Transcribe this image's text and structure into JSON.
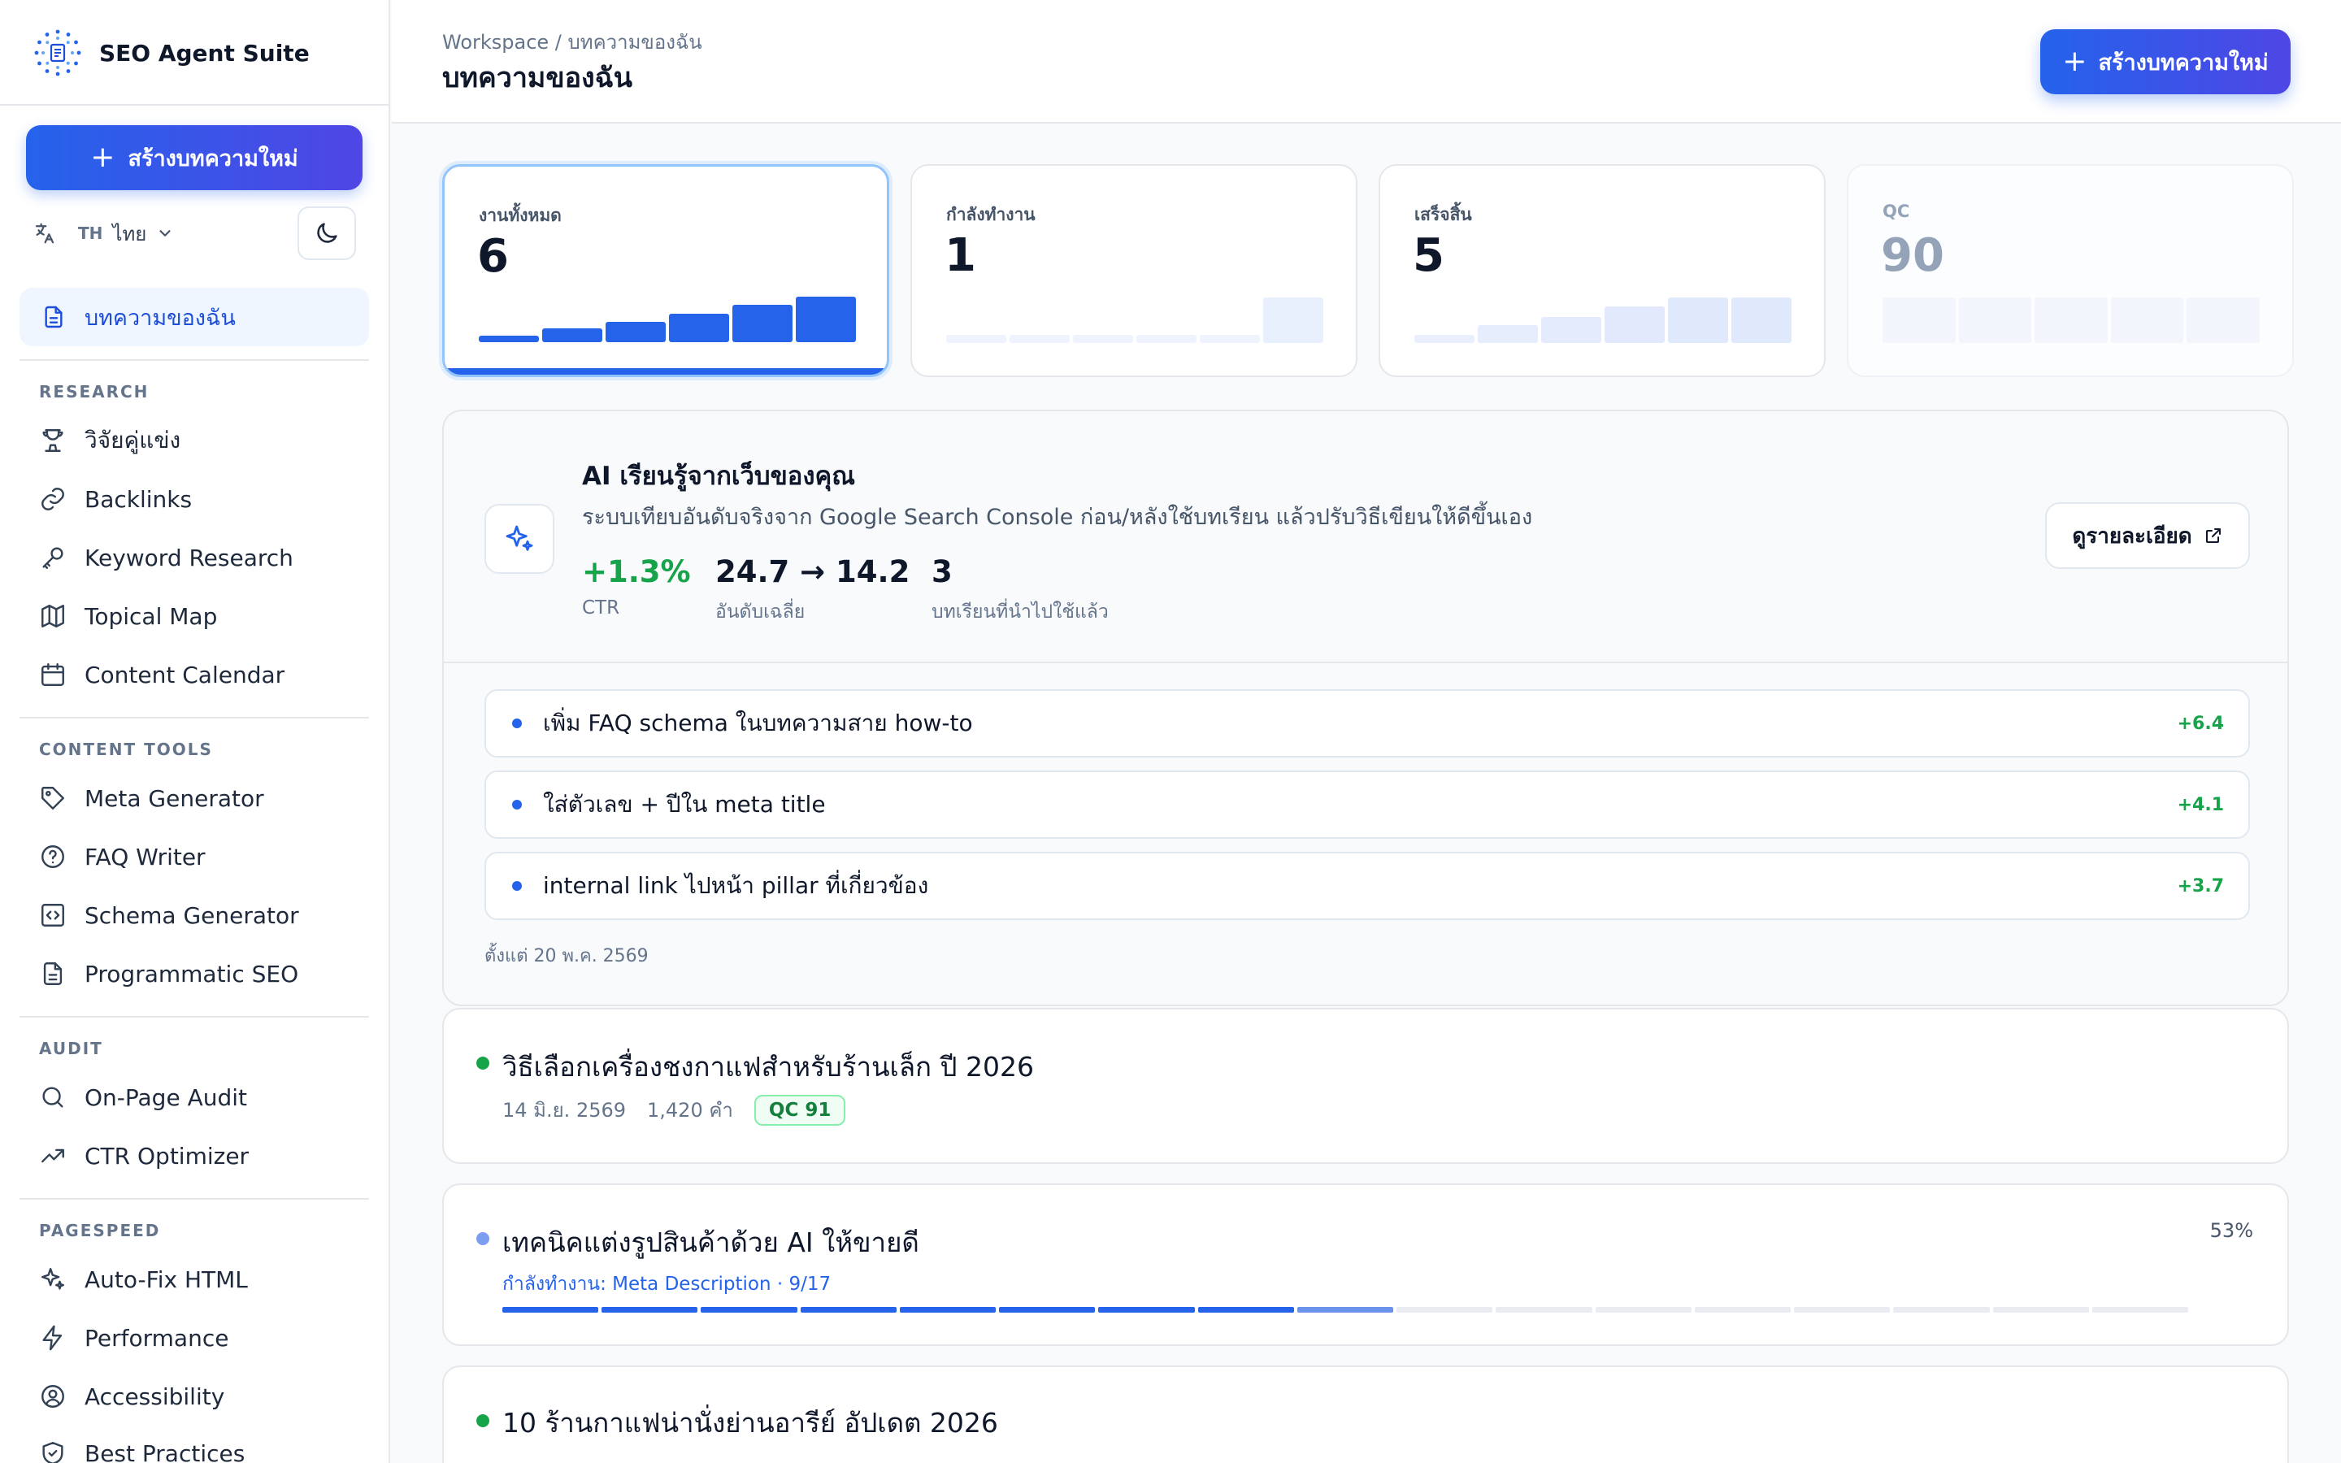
{
  "app": {
    "name": "SEO Agent Suite"
  },
  "sidebar": {
    "create_label": "สร้างบทความใหม่",
    "lang_code": "TH",
    "lang_name": "ไทย",
    "active_item": "บทความของฉัน",
    "sections": [
      {
        "title": "RESEARCH",
        "items": [
          {
            "label": "วิจัยคู่แข่ง",
            "icon": "trophy-icon"
          },
          {
            "label": "Backlinks",
            "icon": "link-icon"
          },
          {
            "label": "Keyword Research",
            "icon": "key-icon"
          },
          {
            "label": "Topical Map",
            "icon": "map-icon"
          },
          {
            "label": "Content Calendar",
            "icon": "calendar-icon"
          }
        ]
      },
      {
        "title": "CONTENT TOOLS",
        "items": [
          {
            "label": "Meta Generator",
            "icon": "tag-icon"
          },
          {
            "label": "FAQ Writer",
            "icon": "help-circle-icon"
          },
          {
            "label": "Schema Generator",
            "icon": "code-icon"
          },
          {
            "label": "Programmatic SEO",
            "icon": "file-icon"
          }
        ]
      },
      {
        "title": "AUDIT",
        "items": [
          {
            "label": "On-Page Audit",
            "icon": "search-icon"
          },
          {
            "label": "CTR Optimizer",
            "icon": "trending-up-icon"
          }
        ]
      },
      {
        "title": "PAGESPEED",
        "items": [
          {
            "label": "Auto-Fix HTML",
            "icon": "sparkles-icon"
          },
          {
            "label": "Performance",
            "icon": "lightning-icon"
          },
          {
            "label": "Accessibility",
            "icon": "accessibility-icon"
          },
          {
            "label": "Best Practices",
            "icon": "shield-icon"
          }
        ]
      }
    ]
  },
  "header": {
    "breadcrumb": "Workspace / บทความของฉัน",
    "title": "บทความของฉัน",
    "create_label": "สร้างบทความใหม่"
  },
  "stats": [
    {
      "label": "งานทั้งหมด",
      "value": "6",
      "bars": [
        0.15,
        0.3,
        0.45,
        0.62,
        0.82,
        1.0
      ],
      "active": true
    },
    {
      "label": "กำลังทำงาน",
      "value": "1",
      "bars": [
        0.18,
        0.18,
        0.18,
        0.18,
        0.18,
        1.0
      ]
    },
    {
      "label": "เสร็จสิ้น",
      "value": "5",
      "bars": [
        0.18,
        0.4,
        0.58,
        0.8,
        1.0,
        1.0
      ]
    },
    {
      "label": "QC",
      "value": "90",
      "bars": [
        1.0,
        1.0,
        1.0,
        1.0,
        1.0
      ],
      "faded": true
    }
  ],
  "ai": {
    "title": "AI เรียนรู้จากเว็บของคุณ",
    "description": "ระบบเทียบอันดับจริงจาก Google Search Console ก่อน/หลังใช้บทเรียน แล้วปรับวิธีเขียนให้ดีขึ้นเอง",
    "metrics": [
      {
        "value": "+1.3%",
        "label": "CTR"
      },
      {
        "value": "24.7 → 14.2",
        "label": "อันดับเฉลี่ย"
      },
      {
        "value": "3",
        "label": "บทเรียนที่นำไปใช้แล้ว"
      }
    ],
    "detail_label": "ดูรายละเอียด",
    "tips": [
      {
        "text": "เพิ่ม FAQ schema ในบทความสาย how-to",
        "gain": "+6.4"
      },
      {
        "text": "ใส่ตัวเลข + ปีใน meta title",
        "gain": "+4.1"
      },
      {
        "text": "internal link ไปหน้า pillar ที่เกี่ยวข้อง",
        "gain": "+3.7"
      }
    ],
    "since": "ตั้งแต่ 20 พ.ค. 2569"
  },
  "articles": [
    {
      "title": "วิธีเลือกเครื่องชงกาแฟสำหรับร้านเล็ก ปี 2026",
      "date": "14 มิ.ย. 2569",
      "words": "1,420 คำ",
      "qc": "QC 91",
      "status_color": "#16a34a"
    },
    {
      "title": "เทคนิคแต่งรูปสินค้าด้วย AI ให้ขายดี",
      "progress_label": "กำลังทำงาน: Meta Description · 9/17",
      "percent": "53%",
      "steps_done": 8,
      "steps_current": 9,
      "steps_total": 17,
      "status_color": "#7c9ef0"
    },
    {
      "title": "10 ร้านกาแฟน่านั่งย่านอารีย์ อัปเดต 2026",
      "status_color": "#16a34a"
    }
  ],
  "colors": {
    "accent": "#2563eb",
    "success": "#16a34a"
  }
}
